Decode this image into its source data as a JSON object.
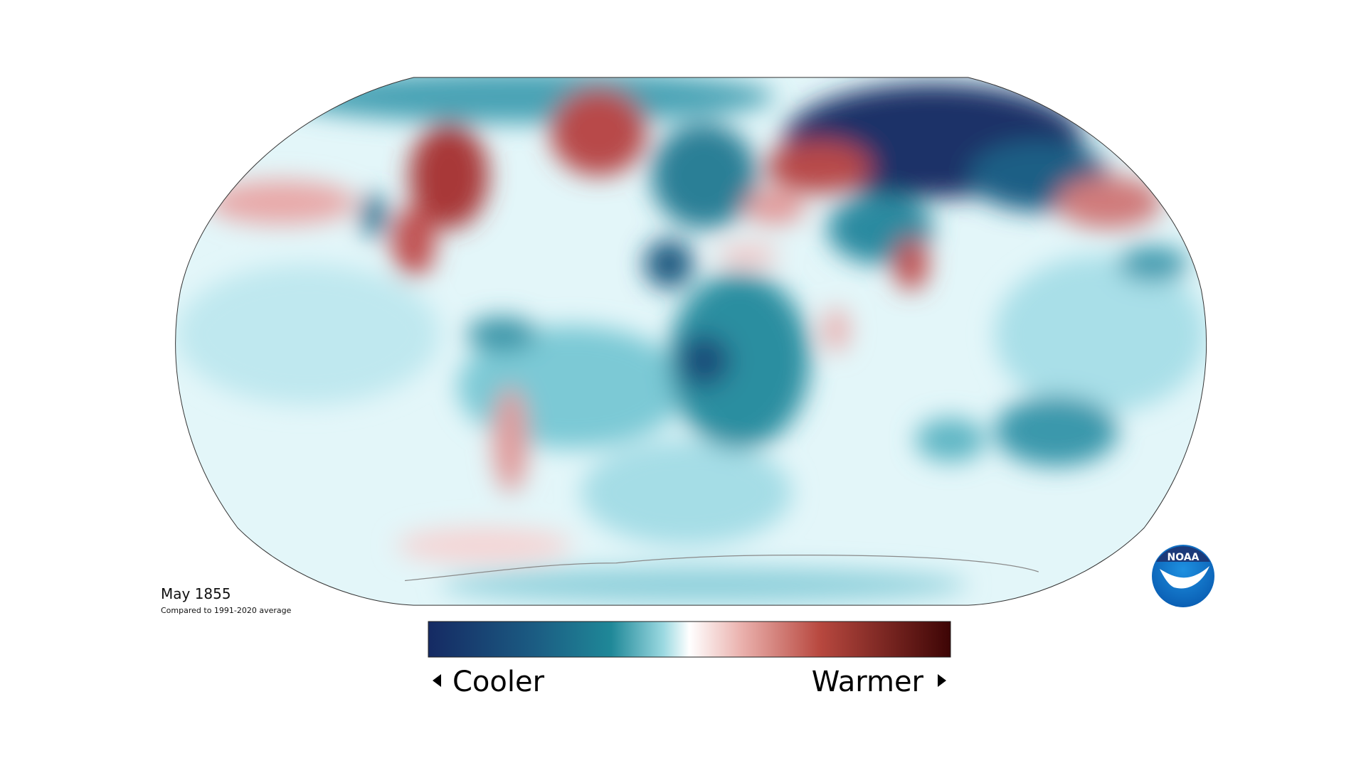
{
  "map": {
    "title": "May 1855",
    "subtitle": "Compared to 1991-2020 average"
  },
  "legend": {
    "low_label": "Cooler",
    "high_label": "Warmer"
  },
  "logo": {
    "text": "NOAA"
  }
}
